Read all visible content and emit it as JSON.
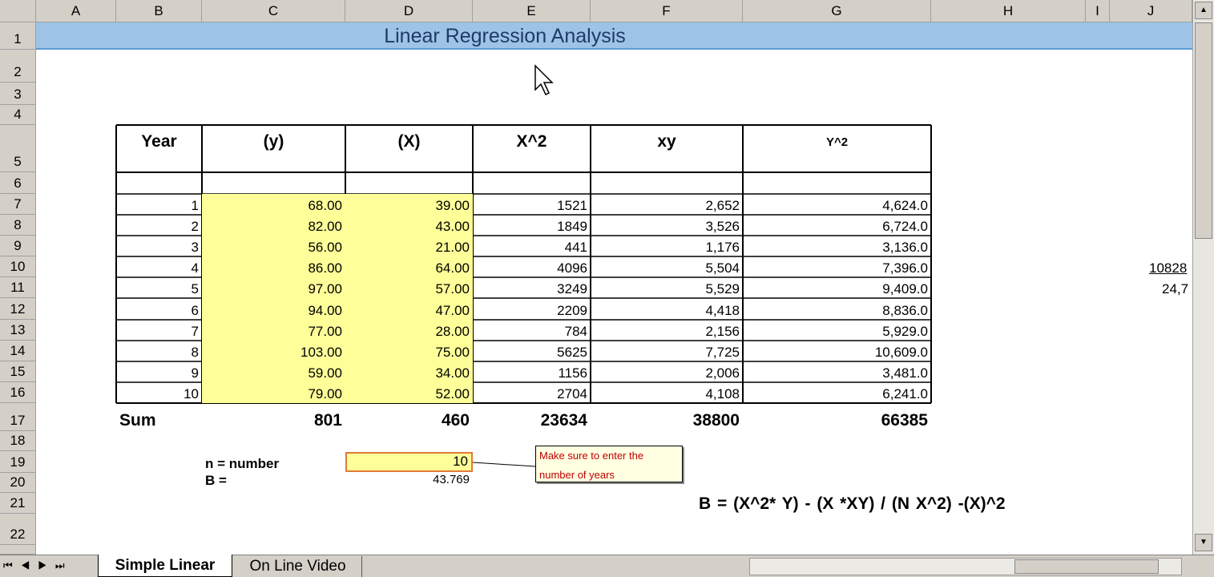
{
  "column_headers": [
    "A",
    "B",
    "C",
    "D",
    "E",
    "F",
    "G",
    "H",
    "I",
    "J"
  ],
  "row_numbers": [
    1,
    2,
    3,
    4,
    5,
    6,
    7,
    8,
    9,
    10,
    11,
    12,
    13,
    14,
    15,
    16,
    17,
    18,
    19,
    20,
    21,
    22
  ],
  "title": "Linear Regression Analysis",
  "table": {
    "headers": [
      "Year",
      "(y)",
      "(X)",
      "X^2",
      "xy",
      "Y^2"
    ],
    "rows": [
      [
        "1",
        "68.00",
        "39.00",
        "1521",
        "2,652",
        "4,624.0"
      ],
      [
        "2",
        "82.00",
        "43.00",
        "1849",
        "3,526",
        "6,724.0"
      ],
      [
        "3",
        "56.00",
        "21.00",
        "441",
        "1,176",
        "3,136.0"
      ],
      [
        "4",
        "86.00",
        "64.00",
        "4096",
        "5,504",
        "7,396.0"
      ],
      [
        "5",
        "97.00",
        "57.00",
        "3249",
        "5,529",
        "9,409.0"
      ],
      [
        "6",
        "94.00",
        "47.00",
        "2209",
        "4,418",
        "8,836.0"
      ],
      [
        "7",
        "77.00",
        "28.00",
        "784",
        "2,156",
        "5,929.0"
      ],
      [
        "8",
        "103.00",
        "75.00",
        "5625",
        "7,725",
        "10,609.0"
      ],
      [
        "9",
        "59.00",
        "34.00",
        "1156",
        "2,006",
        "3,481.0"
      ],
      [
        "10",
        "79.00",
        "52.00",
        "2704",
        "4,108",
        "6,241.0"
      ]
    ],
    "sum_label": "Sum",
    "sums": [
      "801",
      "460",
      "23634",
      "38800",
      "66385"
    ]
  },
  "n_label": "n =  number",
  "n_value": "10",
  "b_label": "B =",
  "b_value": "43.769",
  "comment": "Make sure to enter the number of years",
  "formula": "B =  (X^2* Y) - (X *XY) / (N X^2) -(X)^2",
  "side_values": [
    "10828",
    "24,7"
  ],
  "tabs": [
    "Simple Linear",
    "On Line Video"
  ]
}
